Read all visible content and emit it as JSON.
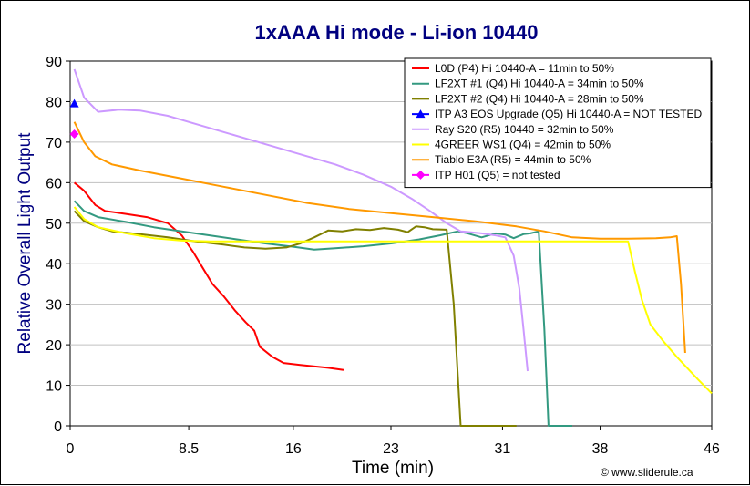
{
  "chart_data": {
    "type": "line",
    "title": "1xAAA Hi mode - Li-ion 10440",
    "xlabel": "Time (min)",
    "ylabel": "Relative Overall Light Output",
    "credit": "© www.sliderule.ca",
    "xlim": [
      0,
      46
    ],
    "ylim": [
      0,
      90
    ],
    "xticks": [
      0,
      8.5,
      16,
      23,
      31,
      38,
      46
    ],
    "xtick_labels": [
      "0",
      "8.5",
      "16",
      "23",
      "31",
      "38",
      "46"
    ],
    "yticks": [
      0,
      10,
      20,
      30,
      40,
      50,
      60,
      70,
      80,
      90
    ],
    "grid": "horizontal",
    "legend_position": "top-right",
    "series": [
      {
        "name": "L0D (P4) Hi 10440-A = 11min to 50%",
        "color": "#ff0000",
        "marker": "none",
        "points": [
          [
            0.3,
            60
          ],
          [
            1,
            58
          ],
          [
            1.8,
            54.5
          ],
          [
            2.5,
            53
          ],
          [
            4,
            52.3
          ],
          [
            5.5,
            51.5
          ],
          [
            7,
            50
          ],
          [
            8,
            47
          ],
          [
            8.8,
            43
          ],
          [
            9.5,
            39
          ],
          [
            10.2,
            35
          ],
          [
            11,
            32
          ],
          [
            11.8,
            28.5
          ],
          [
            12.6,
            25.5
          ],
          [
            13.2,
            23.5
          ],
          [
            13.6,
            19.5
          ],
          [
            14.5,
            17
          ],
          [
            15.3,
            15.5
          ],
          [
            16.5,
            15
          ],
          [
            18.5,
            14.3
          ],
          [
            19.6,
            13.8
          ]
        ]
      },
      {
        "name": "LF2XT #1 (Q4) Hi 10440-A = 34min to 50%",
        "color": "#339980",
        "marker": "none",
        "points": [
          [
            0.3,
            55.5
          ],
          [
            1,
            53
          ],
          [
            2,
            51.5
          ],
          [
            4,
            50.3
          ],
          [
            6,
            49
          ],
          [
            8,
            48
          ],
          [
            10,
            47
          ],
          [
            12,
            46
          ],
          [
            14,
            45
          ],
          [
            16,
            44.2
          ],
          [
            17.5,
            43.5
          ],
          [
            19,
            43.8
          ],
          [
            21,
            44.3
          ],
          [
            23,
            45
          ],
          [
            25,
            46
          ],
          [
            26.5,
            47
          ],
          [
            27.8,
            48
          ],
          [
            28.5,
            47.5
          ],
          [
            29.5,
            46.5
          ],
          [
            30.5,
            47.5
          ],
          [
            31.2,
            47.2
          ],
          [
            31.8,
            46.3
          ],
          [
            32.5,
            47.3
          ],
          [
            33,
            47.5
          ],
          [
            33.6,
            48
          ],
          [
            34,
            24
          ],
          [
            34.3,
            0
          ],
          [
            36,
            0
          ]
        ]
      },
      {
        "name": "LF2XT #2 (Q4) Hi 10440-A = 28min to 50%",
        "color": "#808000",
        "marker": "none",
        "points": [
          [
            0.3,
            53
          ],
          [
            1,
            50.5
          ],
          [
            2,
            49
          ],
          [
            3,
            48
          ],
          [
            5,
            47.3
          ],
          [
            7,
            46.5
          ],
          [
            9,
            45.5
          ],
          [
            11,
            44.7
          ],
          [
            12.5,
            44
          ],
          [
            14,
            43.7
          ],
          [
            15.5,
            44
          ],
          [
            16.5,
            45
          ],
          [
            17.5,
            46.5
          ],
          [
            18.5,
            48.2
          ],
          [
            19.5,
            48
          ],
          [
            20.5,
            48.5
          ],
          [
            21.5,
            48.3
          ],
          [
            22.5,
            48.8
          ],
          [
            23.5,
            48.4
          ],
          [
            24.2,
            47.8
          ],
          [
            24.8,
            49.2
          ],
          [
            25.4,
            49
          ],
          [
            26,
            48.5
          ],
          [
            27,
            48.4
          ],
          [
            27.5,
            30
          ],
          [
            28,
            0
          ],
          [
            32,
            0
          ]
        ]
      },
      {
        "name": "ITP A3 EOS Upgrade (Q5) Hi 10440-A = NOT TESTED",
        "color": "#0000ff",
        "marker": "triangle",
        "points": [
          [
            0.3,
            79.5
          ]
        ]
      },
      {
        "name": "Ray S20 (R5) 10440 = 32min to 50%",
        "color": "#cc99ff",
        "marker": "none",
        "points": [
          [
            0.3,
            88
          ],
          [
            1,
            81
          ],
          [
            2,
            77.5
          ],
          [
            3.5,
            78
          ],
          [
            5,
            77.8
          ],
          [
            7,
            76.5
          ],
          [
            9,
            74.5
          ],
          [
            11,
            72.5
          ],
          [
            13,
            70.5
          ],
          [
            15,
            68.5
          ],
          [
            17,
            66.5
          ],
          [
            19,
            64.5
          ],
          [
            21,
            62
          ],
          [
            23,
            59
          ],
          [
            24.5,
            56
          ],
          [
            25.8,
            53
          ],
          [
            27,
            50
          ],
          [
            28,
            48
          ],
          [
            29.5,
            47.5
          ],
          [
            30.5,
            47
          ],
          [
            31.2,
            46.5
          ],
          [
            31.8,
            42
          ],
          [
            32.2,
            34
          ],
          [
            32.5,
            24
          ],
          [
            32.8,
            13.5
          ]
        ]
      },
      {
        "name": "4GREER WS1 (Q4) = 42min to 50%",
        "color": "#ffff00",
        "marker": "none",
        "points": [
          [
            0.3,
            54
          ],
          [
            1,
            51
          ],
          [
            2,
            49
          ],
          [
            4,
            47.5
          ],
          [
            6,
            46.3
          ],
          [
            8,
            45.7
          ],
          [
            10,
            45.5
          ],
          [
            20,
            45.5
          ],
          [
            30,
            45.5
          ],
          [
            40,
            45.5
          ],
          [
            40.5,
            38
          ],
          [
            41,
            31
          ],
          [
            41.6,
            25
          ],
          [
            42.5,
            21
          ],
          [
            43.5,
            17
          ],
          [
            45,
            11.5
          ],
          [
            46,
            8
          ]
        ]
      },
      {
        "name": "Tiablo E3A (R5) = 44min to 50%",
        "color": "#ff9900",
        "marker": "none",
        "points": [
          [
            0.3,
            75
          ],
          [
            1,
            70
          ],
          [
            1.8,
            66.5
          ],
          [
            3,
            64.5
          ],
          [
            5,
            63
          ],
          [
            8,
            61
          ],
          [
            11,
            59
          ],
          [
            14,
            57
          ],
          [
            17,
            55
          ],
          [
            20,
            53.5
          ],
          [
            23,
            52.5
          ],
          [
            26,
            51.5
          ],
          [
            29,
            50.5
          ],
          [
            32,
            49.2
          ],
          [
            34,
            48
          ],
          [
            36,
            46.5
          ],
          [
            38,
            46.2
          ],
          [
            40,
            46.2
          ],
          [
            42,
            46.3
          ],
          [
            43,
            46.5
          ],
          [
            43.5,
            46.8
          ],
          [
            43.8,
            35
          ],
          [
            44.1,
            18
          ]
        ]
      },
      {
        "name": "ITP H01 (Q5) = not tested",
        "color": "#ff00ff",
        "marker": "diamond",
        "points": [
          [
            0.3,
            72
          ]
        ]
      }
    ]
  }
}
